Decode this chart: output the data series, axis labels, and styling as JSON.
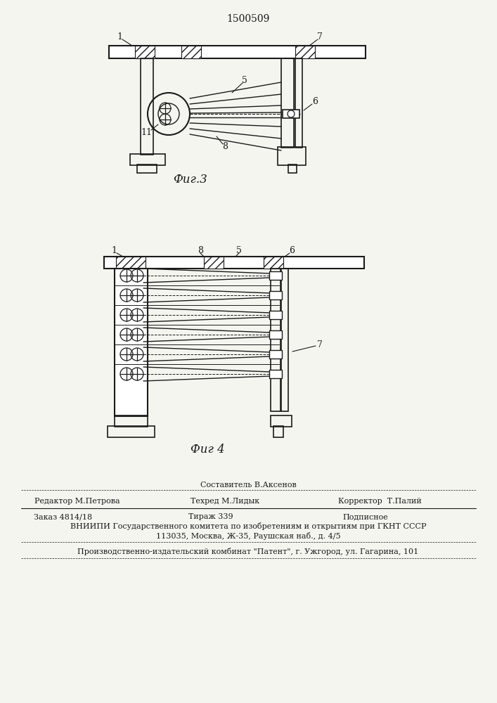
{
  "title": "1500509",
  "title_fontsize": 11,
  "bg_color": "#f5f5f0",
  "line_color": "#1a1a1a",
  "fig3_caption": "Фиг.3",
  "fig4_caption": "Фиг 4",
  "footer_line0": "Составитель В.Аксенов",
  "footer_line1_left": "Редактор М.Петрова",
  "footer_line1_mid": "Техред М.Лидык",
  "footer_line1_right": "Корректор  Т.Палий",
  "footer_line2_left": "Заказ 4814/18",
  "footer_line2_mid": "Тираж 339",
  "footer_line2_right": "Подписное",
  "footer_line3": "ВНИИПИ Государственного комитета по изобретениям и открытиям при ГКНТ СССР",
  "footer_line4": "113035, Москва, Ж-35, Раушская наб., д. 4/5",
  "footer_line5": "Производственно-издательский комбинат \"Патент\", г. Ужгород, ул. Гагарина, 101"
}
